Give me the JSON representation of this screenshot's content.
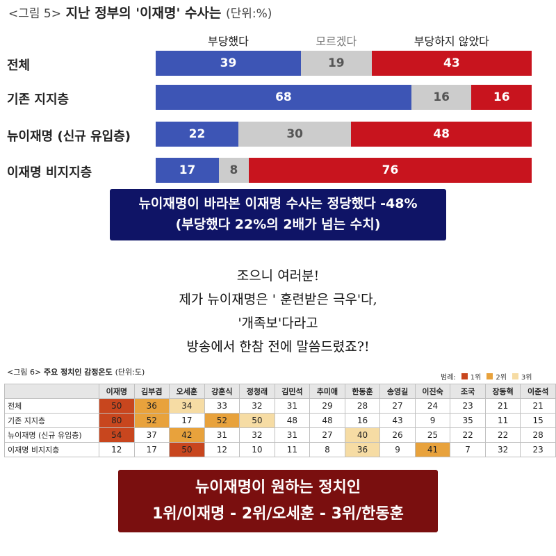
{
  "figure5": {
    "title_prefix": "<그림 5>",
    "title_main": "지난 정부의 '이재명' 수사는",
    "title_unit": "(단위:%)",
    "chart_data": {
      "type": "bar",
      "stacked": true,
      "orientation": "horizontal",
      "categories": [
        "전체",
        "기존 지지층",
        "뉴이재명 (신규 유입층)",
        "이재명 비지지층"
      ],
      "series": [
        {
          "name": "부당했다",
          "values": [
            39,
            68,
            22,
            17
          ],
          "color": "#3d55b5"
        },
        {
          "name": "모르겠다",
          "values": [
            19,
            16,
            30,
            8
          ],
          "color": "#cccccc"
        },
        {
          "name": "부당하지 않았다",
          "values": [
            43,
            16,
            48,
            76
          ],
          "color": "#c8141e"
        }
      ],
      "legend_position": "top"
    }
  },
  "caption1": {
    "line1": "뉴이재명이 바라본 이재명 수사는 정당했다 -48%",
    "line2": "(부당했다 22%의 2배가 넘는 수치)"
  },
  "middle_text": {
    "lines": [
      "조으니 여러분!",
      "제가 뉴이재명은 ' 훈련받은 극우'다,",
      "'개족보'다라고",
      "방송에서 한참 전에 말씀드렸죠?!"
    ]
  },
  "figure6": {
    "title_prefix": "<그림 6>",
    "title_main": "주요 정치인 감정온도",
    "title_unit": "(단위:도)",
    "legend_label": "범례:",
    "legend": [
      {
        "name": "1위",
        "color": "#c8461e"
      },
      {
        "name": "2위",
        "color": "#e8a23c"
      },
      {
        "name": "3위",
        "color": "#f6dca4"
      }
    ],
    "chart_data": {
      "type": "table",
      "columns": [
        "이재명",
        "김부겸",
        "오세훈",
        "강훈식",
        "정청래",
        "김민석",
        "추미애",
        "한동훈",
        "송영길",
        "이진숙",
        "조국",
        "장동혁",
        "이준석"
      ],
      "rows": [
        {
          "label": "전체",
          "values": [
            50,
            36,
            34,
            33,
            32,
            31,
            29,
            28,
            27,
            24,
            23,
            21,
            21
          ],
          "ranks": [
            1,
            2,
            3,
            0,
            0,
            0,
            0,
            0,
            0,
            0,
            0,
            0,
            0
          ]
        },
        {
          "label": "기존 지지층",
          "values": [
            80,
            52,
            17,
            52,
            50,
            48,
            48,
            16,
            43,
            9,
            35,
            11,
            15
          ],
          "ranks": [
            1,
            2,
            0,
            2,
            3,
            0,
            0,
            0,
            0,
            0,
            0,
            0,
            0
          ]
        },
        {
          "label": "뉴이재명 (신규 유입층)",
          "values": [
            54,
            37,
            42,
            31,
            32,
            31,
            27,
            40,
            26,
            25,
            22,
            22,
            28
          ],
          "ranks": [
            1,
            0,
            2,
            0,
            0,
            0,
            0,
            3,
            0,
            0,
            0,
            0,
            0
          ]
        },
        {
          "label": "이재명 비지지층",
          "values": [
            12,
            17,
            50,
            12,
            10,
            11,
            8,
            36,
            9,
            41,
            7,
            32,
            23
          ],
          "ranks": [
            0,
            0,
            1,
            0,
            0,
            0,
            0,
            3,
            0,
            2,
            0,
            0,
            0
          ]
        }
      ]
    }
  },
  "caption2": {
    "line1": "뉴이재명이 원하는 정치인",
    "line2": "1위/이재명 - 2위/오세훈 - 3위/한동훈"
  }
}
